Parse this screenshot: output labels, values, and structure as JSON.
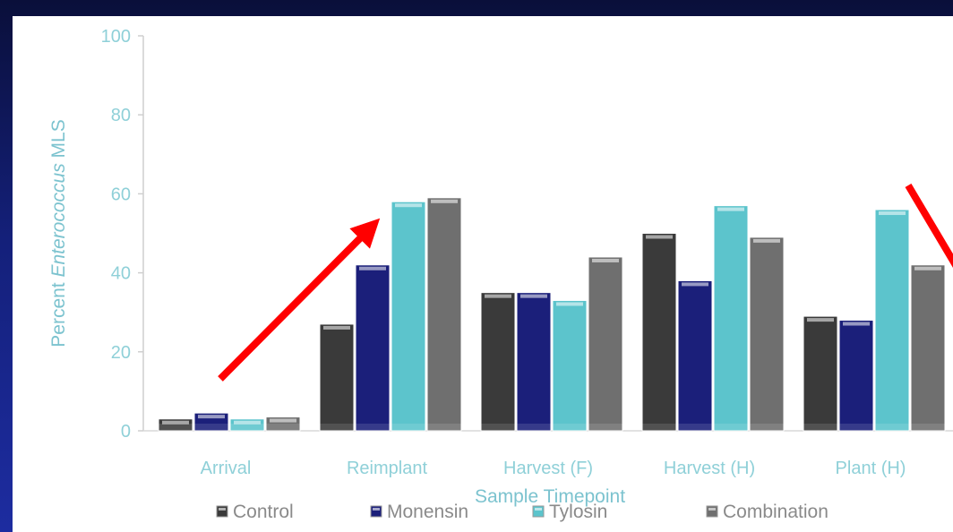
{
  "chart_data": {
    "type": "bar",
    "xlabel": "Sample Timepoint",
    "ylabel_prefix": "Percent ",
    "ylabel_italic": "Enterococcus",
    "ylabel_suffix": " MLS",
    "ylim": [
      0,
      100
    ],
    "yticks": [
      "0",
      "20",
      "40",
      "60",
      "80",
      "100"
    ],
    "categories": [
      "Arrival",
      "Reimplant",
      "Harvest (F)",
      "Harvest (H)",
      "Plant (H)"
    ],
    "series": [
      {
        "name": "Control",
        "color": "#3a3a3a",
        "values": [
          3,
          27,
          35,
          50,
          29
        ]
      },
      {
        "name": "Monensin",
        "color": "#1b1f7a",
        "values": [
          4.5,
          42,
          35,
          38,
          28
        ]
      },
      {
        "name": "Tylosin",
        "color": "#5cc4cc",
        "values": [
          3,
          58,
          33,
          57,
          56
        ]
      },
      {
        "name": "Combination",
        "color": "#6f6f6f",
        "values": [
          3.5,
          59,
          44,
          49,
          42
        ]
      }
    ],
    "grid": false,
    "legend": "bottom"
  },
  "annotations": {
    "arrow_color": "#ff0000"
  }
}
